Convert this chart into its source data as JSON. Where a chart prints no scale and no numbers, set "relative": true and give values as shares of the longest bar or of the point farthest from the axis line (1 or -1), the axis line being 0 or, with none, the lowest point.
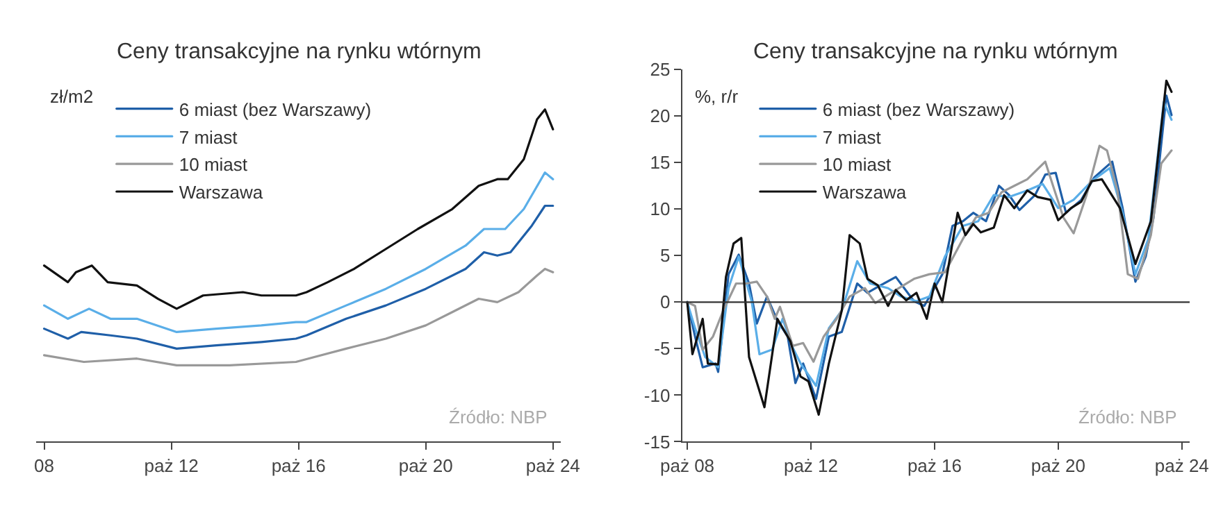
{
  "chart_data": [
    {
      "type": "line",
      "title": "Ceny transakcyjne na rynku wtórnym",
      "ylabel": "zł/m2",
      "relative": true,
      "tick_labels": "x",
      "legend": "top left",
      "xlim": [
        "2008-07",
        "2025-01"
      ],
      "xticks": [
        {
          "value": "2008-10",
          "label": "08"
        },
        {
          "value": "2012-10",
          "label": "paż 12"
        },
        {
          "value": "2016-10",
          "label": "paż 16"
        },
        {
          "value": "2020-10",
          "label": "paż 20"
        },
        {
          "value": "2024-10",
          "label": "paż 24"
        }
      ],
      "annotations": [
        "Źródło: NBP"
      ],
      "series": [
        {
          "name": "6 miast (bez Warszawy)",
          "color": "#1f5fa8",
          "x": [
            "2008-10",
            "2009-07",
            "2009-12",
            "2010-11",
            "2011-09",
            "2012-12",
            "2014-03",
            "2015-08",
            "2016-09",
            "2017-01",
            "2018-04",
            "2019-07",
            "2020-10",
            "2022-01",
            "2022-08",
            "2023-01",
            "2023-06",
            "2024-02",
            "2024-07",
            "2024-10"
          ],
          "values": [
            0.34,
            0.31,
            0.33,
            0.32,
            0.31,
            0.28,
            0.29,
            0.3,
            0.31,
            0.32,
            0.37,
            0.41,
            0.46,
            0.52,
            0.57,
            0.56,
            0.57,
            0.65,
            0.71,
            0.71
          ]
        },
        {
          "name": "7 miast",
          "color": "#5aaee8",
          "x": [
            "2008-10",
            "2009-07",
            "2010-03",
            "2010-11",
            "2011-09",
            "2012-12",
            "2014-03",
            "2015-08",
            "2016-09",
            "2017-01",
            "2018-04",
            "2019-07",
            "2020-10",
            "2022-01",
            "2022-08",
            "2023-04",
            "2023-11",
            "2024-07",
            "2024-10"
          ],
          "values": [
            0.41,
            0.37,
            0.4,
            0.37,
            0.37,
            0.33,
            0.34,
            0.35,
            0.36,
            0.36,
            0.41,
            0.46,
            0.52,
            0.59,
            0.64,
            0.64,
            0.7,
            0.81,
            0.79
          ]
        },
        {
          "name": "10 miast",
          "color": "#999999",
          "x": [
            "2008-10",
            "2010-01",
            "2011-09",
            "2012-12",
            "2014-08",
            "2016-09",
            "2018-04",
            "2019-07",
            "2020-10",
            "2021-08",
            "2022-06",
            "2023-01",
            "2023-09",
            "2024-04",
            "2024-07",
            "2024-10"
          ],
          "values": [
            0.26,
            0.24,
            0.25,
            0.23,
            0.23,
            0.24,
            0.28,
            0.31,
            0.35,
            0.39,
            0.43,
            0.42,
            0.45,
            0.5,
            0.52,
            0.51
          ]
        },
        {
          "name": "Warszawa",
          "color": "#111111",
          "x": [
            "2008-10",
            "2009-07",
            "2009-10",
            "2010-04",
            "2010-10",
            "2011-09",
            "2012-05",
            "2012-12",
            "2013-10",
            "2015-01",
            "2015-08",
            "2016-09",
            "2017-01",
            "2017-09",
            "2018-07",
            "2019-07",
            "2020-07",
            "2021-08",
            "2022-06",
            "2023-01",
            "2023-05",
            "2023-11",
            "2024-04",
            "2024-07",
            "2024-10"
          ],
          "values": [
            0.53,
            0.48,
            0.51,
            0.53,
            0.48,
            0.47,
            0.43,
            0.4,
            0.44,
            0.45,
            0.44,
            0.44,
            0.45,
            0.48,
            0.52,
            0.58,
            0.64,
            0.7,
            0.77,
            0.79,
            0.79,
            0.85,
            0.97,
            1,
            0.94
          ]
        }
      ]
    },
    {
      "type": "line",
      "title": "Ceny transakcyjne na rynku wtórnym",
      "ylabel": "%, r/r",
      "legend": "top left",
      "xlim": [
        "2008-08",
        "2025-01"
      ],
      "ylim": [
        -15,
        25
      ],
      "yticks": [
        -15,
        -10,
        -5,
        0,
        5,
        10,
        15,
        20,
        25
      ],
      "xticks": [
        {
          "value": "2008-10",
          "label": "paż 08"
        },
        {
          "value": "2012-10",
          "label": "paż 12"
        },
        {
          "value": "2016-10",
          "label": "paż 16"
        },
        {
          "value": "2020-10",
          "label": "paż 20"
        },
        {
          "value": "2024-10",
          "label": "paż 24"
        }
      ],
      "ref_lines": [
        {
          "axis": "y",
          "value": 0,
          "color": "#333333"
        }
      ],
      "annotations": [
        "Źródło: NBP"
      ],
      "series": [
        {
          "name": "6 miast (bez Warszawy)",
          "color": "#1f5fa8",
          "x": [
            "2008-10",
            "2009-01",
            "2009-04",
            "2009-09",
            "2009-10",
            "2010-02",
            "2010-06",
            "2010-10",
            "2011-01",
            "2011-05",
            "2011-09",
            "2012-01",
            "2012-04",
            "2012-07",
            "2012-12",
            "2013-05",
            "2013-10",
            "2014-04",
            "2014-08",
            "2015-01",
            "2015-07",
            "2016-02",
            "2016-06",
            "2017-01",
            "2017-05",
            "2017-09",
            "2018-01",
            "2018-06",
            "2018-11",
            "2019-03",
            "2019-07",
            "2020-01",
            "2020-05",
            "2020-09",
            "2021-01",
            "2021-07",
            "2021-12",
            "2022-07",
            "2022-11",
            "2023-04",
            "2023-08",
            "2023-11",
            "2024-04",
            "2024-06"
          ],
          "values": [
            0,
            -3.7,
            -7.0,
            -6.6,
            -7.5,
            3.0,
            5.1,
            2.0,
            -2.3,
            0.6,
            -2.0,
            -3.7,
            -8.7,
            -6.6,
            -10.4,
            -3.7,
            -3.2,
            2.0,
            1.0,
            1.8,
            2.7,
            0.1,
            -0.4,
            3.0,
            8.2,
            8.7,
            9.6,
            8.7,
            12.5,
            11.5,
            9.9,
            11.5,
            13.7,
            13.9,
            9.6,
            11.0,
            13.4,
            15.1,
            10.1,
            2.2,
            4.9,
            9.1,
            22.2,
            20.1
          ]
        },
        {
          "name": "7 miast",
          "color": "#5aaee8",
          "x": [
            "2008-10",
            "2009-01",
            "2009-05",
            "2009-10",
            "2010-02",
            "2010-06",
            "2010-11",
            "2011-02",
            "2011-07",
            "2011-11",
            "2012-03",
            "2012-06",
            "2012-12",
            "2013-05",
            "2013-10",
            "2014-04",
            "2014-09",
            "2015-04",
            "2015-09",
            "2016-03",
            "2016-08",
            "2017-02",
            "2017-09",
            "2018-03",
            "2018-09",
            "2019-03",
            "2019-10",
            "2020-04",
            "2020-10",
            "2021-04",
            "2021-11",
            "2022-06",
            "2022-11",
            "2023-04",
            "2023-09",
            "2024-03",
            "2024-06"
          ],
          "values": [
            0,
            -2.8,
            -5.9,
            -7.0,
            1.5,
            4.9,
            0.1,
            -5.6,
            -5.1,
            -1.8,
            -4.9,
            -6.6,
            -9.0,
            -2.8,
            -0.9,
            4.4,
            2.0,
            1.5,
            0.6,
            0.1,
            0.6,
            4.9,
            8.2,
            8.7,
            11.5,
            11.3,
            12.0,
            12.7,
            10.1,
            11.0,
            13.0,
            14.4,
            9.6,
            3.0,
            6.8,
            21.5,
            19.6
          ]
        },
        {
          "name": "10 miast",
          "color": "#999999",
          "x": [
            "2008-10",
            "2009-01",
            "2009-04",
            "2009-08",
            "2009-12",
            "2010-05",
            "2010-09",
            "2011-01",
            "2011-05",
            "2011-08",
            "2011-10",
            "2012-03",
            "2012-07",
            "2012-11",
            "2013-03",
            "2013-08",
            "2014-01",
            "2014-07",
            "2014-11",
            "2015-04",
            "2016-02",
            "2016-08",
            "2017-02",
            "2017-09",
            "2018-02",
            "2018-07",
            "2018-12",
            "2019-05",
            "2019-10",
            "2020-05",
            "2020-08",
            "2020-12",
            "2021-04",
            "2021-09",
            "2022-02",
            "2022-05",
            "2022-09",
            "2023-01",
            "2023-05",
            "2023-10",
            "2024-02",
            "2024-06"
          ],
          "values": [
            0,
            -0.4,
            -5.1,
            -3.7,
            -0.9,
            2.0,
            2.0,
            2.2,
            0.6,
            -1.8,
            -0.5,
            -4.7,
            -4.4,
            -6.4,
            -3.7,
            -1.8,
            0.6,
            1.5,
            -0.1,
            0.8,
            2.5,
            3.0,
            3.2,
            6.8,
            9.1,
            9.6,
            11.8,
            12.5,
            13.2,
            15.1,
            12.5,
            9.1,
            7.4,
            11.5,
            16.8,
            16.3,
            12.0,
            3.0,
            2.5,
            7.2,
            14.9,
            16.3
          ]
        },
        {
          "name": "Warszawa",
          "color": "#111111",
          "x": [
            "2008-10",
            "2008-12",
            "2009-04",
            "2009-06",
            "2009-10",
            "2010-01",
            "2010-04",
            "2010-07",
            "2010-10",
            "2011-04",
            "2011-09",
            "2012-02",
            "2012-06",
            "2012-09",
            "2013-01",
            "2013-05",
            "2013-10",
            "2014-01",
            "2014-05",
            "2014-08",
            "2014-12",
            "2015-04",
            "2015-07",
            "2015-11",
            "2016-03",
            "2016-07",
            "2016-10",
            "2017-01",
            "2017-07",
            "2017-10",
            "2018-01",
            "2018-04",
            "2018-09",
            "2019-01",
            "2019-05",
            "2019-10",
            "2020-02",
            "2020-07",
            "2020-10",
            "2021-03",
            "2021-07",
            "2021-11",
            "2022-03",
            "2022-10",
            "2023-04",
            "2023-10",
            "2024-04",
            "2024-06"
          ],
          "values": [
            0,
            -5.6,
            -1.8,
            -6.6,
            -6.7,
            2.7,
            6.3,
            6.9,
            -5.9,
            -11.3,
            -1.8,
            -4.2,
            -8.0,
            -8.5,
            -12.1,
            -6.6,
            -0.9,
            7.2,
            6.3,
            2.5,
            1.8,
            -0.4,
            1.3,
            0.2,
            1.0,
            -1.8,
            2.0,
            0,
            9.6,
            7.2,
            8.4,
            7.5,
            8.0,
            11.5,
            10.1,
            12.0,
            11.3,
            11.0,
            8.8,
            10.1,
            10.8,
            13.0,
            13.2,
            10.1,
            4.1,
            8.7,
            23.8,
            22.6
          ]
        }
      ]
    }
  ]
}
